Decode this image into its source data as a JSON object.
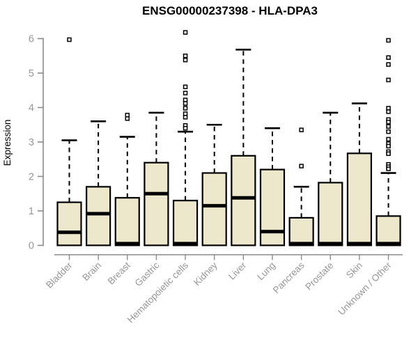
{
  "chart_data": {
    "type": "box",
    "title": "ENSG00000237398 - HLA-DPA3",
    "ylabel": "Expression",
    "xlabel": "",
    "ylim": [
      0,
      6
    ],
    "yticks": [
      0,
      1,
      2,
      3,
      4,
      5,
      6
    ],
    "grid": false,
    "legend": "none",
    "categories": [
      "Bladder",
      "Brain",
      "Breast",
      "Gastric",
      "Hematopoietic cells",
      "Kidney",
      "Liver",
      "Lung",
      "Pancreas",
      "Prostate",
      "Skin",
      "Unknown / Other"
    ],
    "series": [
      {
        "name": "Bladder",
        "whisker_low": 0,
        "q1": 0,
        "median": 0.38,
        "q3": 1.25,
        "whisker_high": 3.05,
        "outliers": [
          5.97
        ]
      },
      {
        "name": "Brain",
        "whisker_low": 0,
        "q1": 0,
        "median": 0.92,
        "q3": 1.7,
        "whisker_high": 3.6,
        "outliers": []
      },
      {
        "name": "Breast",
        "whisker_low": 0,
        "q1": 0,
        "median": 0.05,
        "q3": 1.38,
        "whisker_high": 3.15,
        "outliers": [
          3.78,
          3.68
        ]
      },
      {
        "name": "Gastric",
        "whisker_low": 0,
        "q1": 0,
        "median": 1.5,
        "q3": 2.4,
        "whisker_high": 3.85,
        "outliers": []
      },
      {
        "name": "Hematopoietic cells",
        "whisker_low": 0,
        "q1": 0,
        "median": 0.05,
        "q3": 1.3,
        "whisker_high": 3.3,
        "outliers": [
          6.18,
          5.5,
          5.38,
          4.6,
          4.42,
          4.22,
          4.12,
          3.98,
          3.82,
          3.72,
          3.48,
          3.4
        ]
      },
      {
        "name": "Kidney",
        "whisker_low": 0,
        "q1": 0,
        "median": 1.15,
        "q3": 2.1,
        "whisker_high": 3.5,
        "outliers": []
      },
      {
        "name": "Liver",
        "whisker_low": 0,
        "q1": 0,
        "median": 1.38,
        "q3": 2.6,
        "whisker_high": 5.68,
        "outliers": []
      },
      {
        "name": "Lung",
        "whisker_low": 0,
        "q1": 0,
        "median": 0.4,
        "q3": 2.2,
        "whisker_high": 3.4,
        "outliers": []
      },
      {
        "name": "Pancreas",
        "whisker_low": 0,
        "q1": 0,
        "median": 0.05,
        "q3": 0.8,
        "whisker_high": 1.7,
        "outliers": [
          3.35,
          2.3
        ]
      },
      {
        "name": "Prostate",
        "whisker_low": 0,
        "q1": 0,
        "median": 0.05,
        "q3": 1.82,
        "whisker_high": 3.85,
        "outliers": []
      },
      {
        "name": "Skin",
        "whisker_low": 0,
        "q1": 0,
        "median": 0.05,
        "q3": 2.67,
        "whisker_high": 4.12,
        "outliers": []
      },
      {
        "name": "Unknown / Other",
        "whisker_low": 0,
        "q1": 0,
        "median": 0.05,
        "q3": 0.85,
        "whisker_high": 2.1,
        "outliers": [
          5.95,
          5.45,
          5.25,
          4.8,
          3.98,
          3.88,
          3.65,
          3.58,
          3.45,
          3.3,
          3.08,
          2.95,
          2.88,
          2.72,
          2.66,
          2.35,
          2.28,
          2.22
        ]
      }
    ],
    "colors": {
      "box_fill": "#EDE8CC",
      "box_border": "#000000",
      "median": "#000000",
      "whisker": "#000000",
      "outlier": "#000000",
      "axis_line": "#8A8A8A",
      "tick_label": "#969696",
      "title": "#000000"
    }
  }
}
